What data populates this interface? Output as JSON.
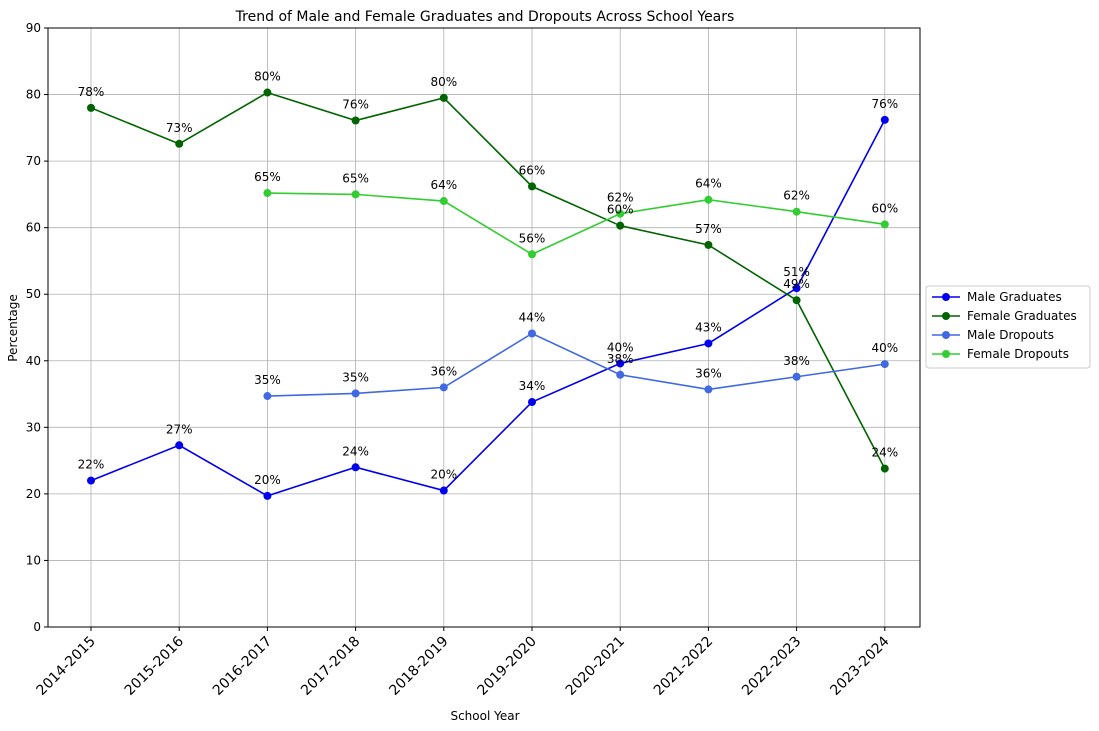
{
  "chart_data": {
    "type": "line",
    "title": "Trend of Male and Female Graduates and Dropouts Across School Years",
    "xlabel": "School Year",
    "ylabel": "Percentage",
    "categories": [
      "2014-2015",
      "2015-2016",
      "2016-2017",
      "2017-2018",
      "2018-2019",
      "2019-2020",
      "2020-2021",
      "2021-2022",
      "2022-2023",
      "2023-2024"
    ],
    "ylim": [
      0,
      90
    ],
    "yticks": [
      0,
      10,
      20,
      30,
      40,
      50,
      60,
      70,
      80,
      90
    ],
    "grid": true,
    "legend_position": "right",
    "series": [
      {
        "name": "Male Graduates",
        "color": "#0000ee",
        "values": [
          22.0,
          27.3,
          19.7,
          24.0,
          20.5,
          33.8,
          39.6,
          42.6,
          50.9,
          76.2
        ],
        "labels": [
          "22%",
          "27%",
          "20%",
          "24%",
          "20%",
          "34%",
          "40%",
          "43%",
          "51%",
          "76%"
        ]
      },
      {
        "name": "Female Graduates",
        "color": "#006400",
        "values": [
          78.0,
          72.6,
          80.3,
          76.1,
          79.5,
          66.2,
          60.3,
          57.4,
          49.1,
          23.8
        ],
        "labels": [
          "78%",
          "73%",
          "80%",
          "76%",
          "80%",
          "66%",
          "60%",
          "57%",
          "49%",
          "24%"
        ]
      },
      {
        "name": "Male Dropouts",
        "color": "#4169e1",
        "values": [
          null,
          null,
          34.7,
          35.1,
          36.0,
          44.1,
          37.9,
          35.7,
          37.6,
          39.5
        ],
        "labels": [
          null,
          null,
          "35%",
          "35%",
          "36%",
          "44%",
          "38%",
          "36%",
          "38%",
          "40%"
        ]
      },
      {
        "name": "Female Dropouts",
        "color": "#32cd32",
        "values": [
          null,
          null,
          65.2,
          65.0,
          64.0,
          56.0,
          62.1,
          64.2,
          62.4,
          60.5
        ],
        "labels": [
          null,
          null,
          "65%",
          "65%",
          "64%",
          "56%",
          "62%",
          "64%",
          "62%",
          "60%"
        ]
      }
    ]
  }
}
